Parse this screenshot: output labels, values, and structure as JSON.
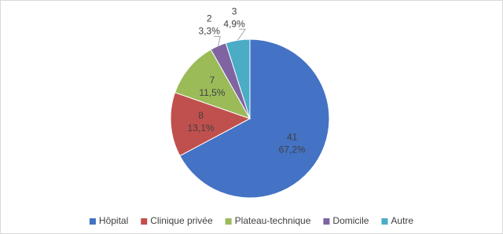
{
  "chart_data": {
    "type": "pie",
    "categories": [
      "Hôpital",
      "Clinique privée",
      "Plateau-technique",
      "Domicile",
      "Autre"
    ],
    "values": [
      41,
      8,
      7,
      2,
      3
    ],
    "percentages": [
      67.2,
      13.1,
      11.5,
      3.3,
      4.9
    ],
    "percentage_labels": [
      "67,2%",
      "13,1%",
      "11,5%",
      "3,3%",
      "4,9%"
    ],
    "colors": [
      "#4472c4",
      "#c0504d",
      "#9bbb59",
      "#8064a2",
      "#4bacc6"
    ],
    "legend": "bottom"
  }
}
